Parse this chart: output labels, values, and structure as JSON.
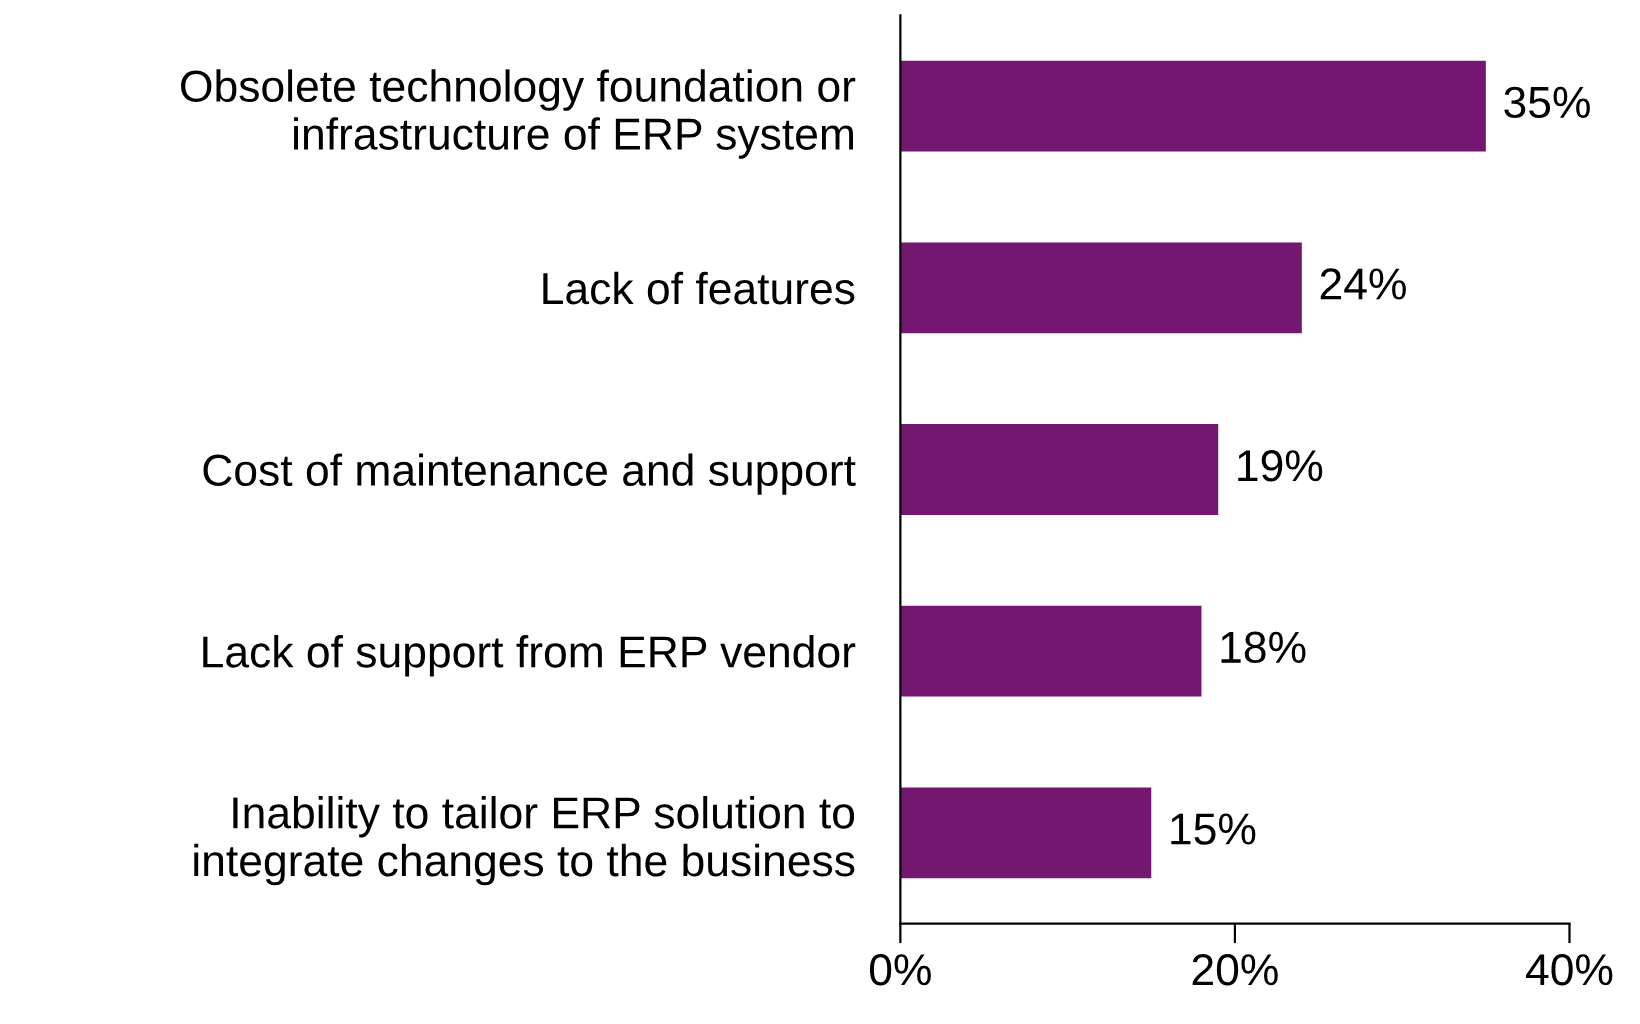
{
  "chart_data": {
    "type": "bar",
    "orientation": "horizontal",
    "categories": [
      "Obsolete technology foundation or\ninfrastructure of ERP system",
      "Lack of features",
      "Cost of maintenance and support",
      "Lack of support from ERP vendor",
      "Inability to tailor ERP solution to\nintegrate changes to the business"
    ],
    "values": [
      35,
      24,
      19,
      18,
      15
    ],
    "value_labels": [
      "35%",
      "24%",
      "19%",
      "18%",
      "15%"
    ],
    "color": "#741770",
    "xlim": [
      0,
      40
    ],
    "xticks": [
      {
        "value": 0,
        "label": "0%"
      },
      {
        "value": 20,
        "label": "20%"
      },
      {
        "value": 40,
        "label": "40%"
      }
    ],
    "grid": false,
    "legend": false
  }
}
